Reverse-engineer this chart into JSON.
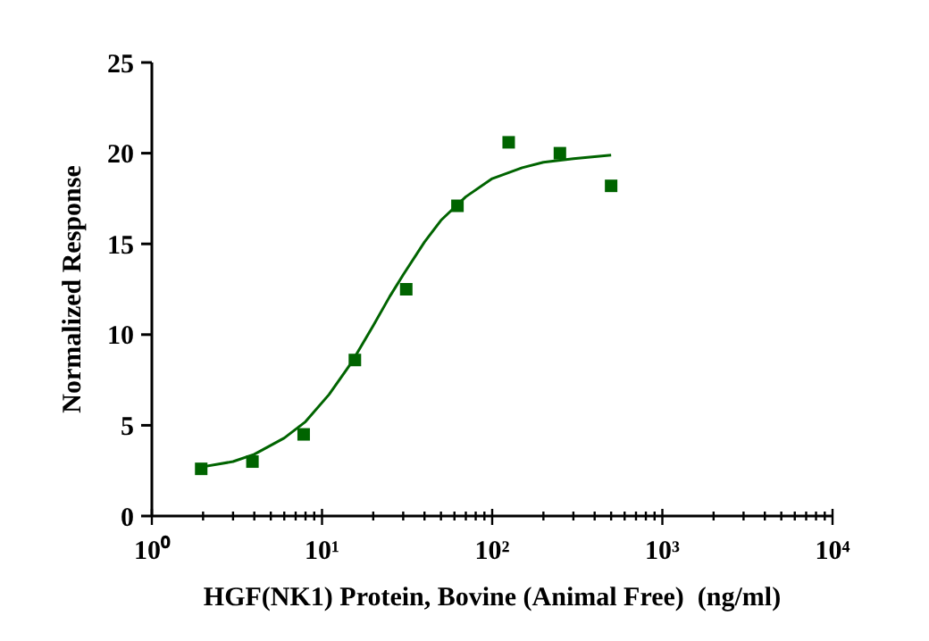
{
  "chart_data": {
    "type": "scatter",
    "xlabel": "HGF(NK1) Protein, Bovine (Animal Free)  (ng/ml)",
    "ylabel": "Normalized Response",
    "log": "x",
    "marker": "square",
    "xlim": [
      1,
      10000
    ],
    "xticks": [
      {
        "value": 1,
        "label": "10⁰"
      },
      {
        "value": 2,
        "label": null
      },
      {
        "value": 3,
        "label": null
      },
      {
        "value": 4,
        "label": null
      },
      {
        "value": 5,
        "label": null
      },
      {
        "value": 6,
        "label": null
      },
      {
        "value": 7,
        "label": null
      },
      {
        "value": 8,
        "label": null
      },
      {
        "value": 9,
        "label": null
      },
      {
        "value": 10,
        "label": "10¹"
      },
      {
        "value": 20,
        "label": null
      },
      {
        "value": 30,
        "label": null
      },
      {
        "value": 40,
        "label": null
      },
      {
        "value": 50,
        "label": null
      },
      {
        "value": 60,
        "label": null
      },
      {
        "value": 70,
        "label": null
      },
      {
        "value": 80,
        "label": null
      },
      {
        "value": 90,
        "label": null
      },
      {
        "value": 100,
        "label": "10²"
      },
      {
        "value": 200,
        "label": null
      },
      {
        "value": 300,
        "label": null
      },
      {
        "value": 400,
        "label": null
      },
      {
        "value": 500,
        "label": null
      },
      {
        "value": 600,
        "label": null
      },
      {
        "value": 700,
        "label": null
      },
      {
        "value": 800,
        "label": null
      },
      {
        "value": 900,
        "label": null
      },
      {
        "value": 1000,
        "label": "10³"
      },
      {
        "value": 2000,
        "label": null
      },
      {
        "value": 3000,
        "label": null
      },
      {
        "value": 4000,
        "label": null
      },
      {
        "value": 5000,
        "label": null
      },
      {
        "value": 6000,
        "label": null
      },
      {
        "value": 7000,
        "label": null
      },
      {
        "value": 8000,
        "label": null
      },
      {
        "value": 9000,
        "label": null
      },
      {
        "value": 10000,
        "label": "10⁴"
      }
    ],
    "ylim": [
      0,
      25
    ],
    "yticks": [
      0,
      5,
      10,
      15,
      20,
      25
    ],
    "series": [
      {
        "color": "#006400",
        "x": [
          1.95,
          3.9,
          7.8,
          15.6,
          31.25,
          62.5,
          125,
          250,
          500
        ],
        "values": [
          2.6,
          3.0,
          4.5,
          8.6,
          12.5,
          17.1,
          20.6,
          20.0,
          18.2
        ]
      },
      {
        "type": "line",
        "color": "#006400",
        "marker": "none",
        "x": [
          1.95,
          3,
          4,
          6,
          8,
          11,
          15,
          20,
          25,
          30,
          40,
          50,
          70,
          100,
          150,
          200,
          300,
          500
        ],
        "values": [
          2.7,
          3.0,
          3.4,
          4.3,
          5.2,
          6.7,
          8.5,
          10.5,
          12.1,
          13.3,
          15.1,
          16.3,
          17.6,
          18.6,
          19.2,
          19.5,
          19.7,
          19.9
        ]
      }
    ]
  }
}
